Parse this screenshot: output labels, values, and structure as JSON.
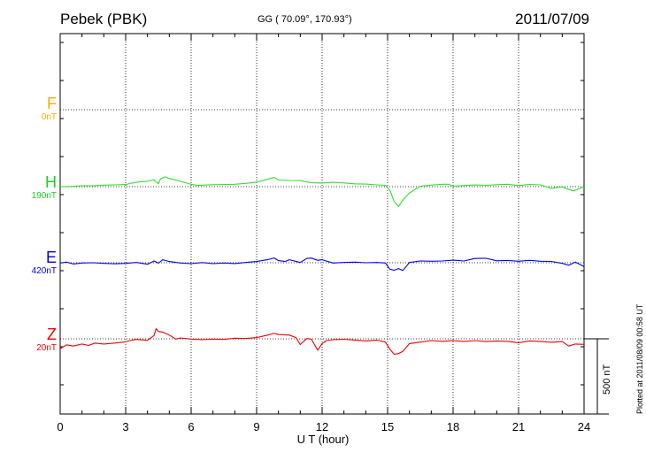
{
  "header": {
    "station": "Pebek (PBK)",
    "coordinates": "GG ( 70.09°, 170.93°)",
    "date": "2011/07/09"
  },
  "footer": {
    "xlabel": "U T (hour)",
    "plotted": "Plotted at 2011/08/09 00:58 UT",
    "scale_label": "500 nT"
  },
  "chart_data": {
    "type": "line",
    "xlabel": "U T (hour)",
    "xlim": [
      0,
      24
    ],
    "xticks": [
      "0",
      "3",
      "6",
      "9",
      "12",
      "15",
      "18",
      "21",
      "24"
    ],
    "scale_bar_nT": 500,
    "grid": true,
    "series": [
      {
        "name": "F",
        "baseline_label": "0nT",
        "color": "#ffaa00",
        "x": [],
        "values": []
      },
      {
        "name": "H",
        "baseline_label": "190nT",
        "color": "#33dd33",
        "x": [
          0,
          0.5,
          1,
          1.5,
          2,
          2.5,
          3,
          3.3,
          3.6,
          4,
          4.3,
          4.5,
          4.6,
          4.8,
          5,
          5.2,
          5.5,
          6,
          6.3,
          7,
          8,
          8.5,
          9,
          9.5,
          9.8,
          10,
          10.5,
          11,
          11.5,
          12,
          12.5,
          13,
          13.5,
          14,
          14.5,
          14.9,
          15.1,
          15.3,
          15.5,
          15.7,
          16,
          16.5,
          17,
          17.5,
          17.8,
          18,
          18.5,
          19,
          19.5,
          20,
          20.5,
          21,
          21.5,
          22,
          22.5,
          23,
          23.5,
          24
        ],
        "values": [
          190,
          192,
          196,
          196,
          200,
          202,
          204,
          214,
          221,
          226,
          236,
          208,
          242,
          255,
          244,
          238,
          226,
          205,
          198,
          203,
          206,
          212,
          220,
          238,
          252,
          234,
          231,
          230,
          216,
          214,
          219,
          215,
          209,
          207,
          202,
          199,
          168,
          92,
          58,
          101,
          148,
          193,
          200,
          206,
          206,
          193,
          197,
          201,
          199,
          203,
          206,
          197,
          204,
          202,
          179,
          188,
          162,
          188
        ]
      },
      {
        "name": "E",
        "baseline_label": "420nT",
        "color": "#0000ee",
        "x": [
          0,
          0.3,
          0.6,
          1,
          1.5,
          2,
          2.5,
          3,
          3.5,
          4,
          4.3,
          4.5,
          4.7,
          5,
          5.5,
          6,
          6.5,
          7,
          7.5,
          8,
          8.5,
          9,
          9.5,
          9.8,
          10,
          10.3,
          10.5,
          11,
          11.3,
          11.5,
          11.8,
          12,
          12.5,
          13,
          13.5,
          14,
          14.5,
          14.9,
          15.1,
          15.3,
          15.5,
          15.7,
          16,
          16.5,
          17,
          17.5,
          18,
          18.5,
          19,
          19.5,
          20,
          20.5,
          21,
          21.5,
          22,
          22.5,
          23,
          23.3,
          23.6,
          24
        ],
        "values": [
          418,
          424,
          412,
          418,
          420,
          416,
          413,
          416,
          422,
          410,
          432,
          417,
          440,
          428,
          418,
          414,
          421,
          414,
          418,
          415,
          422,
          428,
          440,
          452,
          434,
          428,
          440,
          422,
          448,
          451,
          436,
          440,
          418,
          422,
          424,
          420,
          422,
          418,
          377,
          370,
          381,
          368,
          422,
          432,
          430,
          432,
          437,
          432,
          448,
          450,
          433,
          435,
          430,
          436,
          430,
          429,
          416,
          403,
          424,
          394
        ]
      },
      {
        "name": "Z",
        "baseline_label": "20nT",
        "color": "#ee0000",
        "x": [
          0,
          0.3,
          0.6,
          1,
          1.3,
          1.6,
          2,
          2.5,
          3,
          3.3,
          3.5,
          4,
          4.3,
          4.4,
          4.5,
          4.7,
          5,
          5.3,
          5.5,
          6,
          6.5,
          7,
          7.5,
          8,
          8.5,
          9,
          9.5,
          9.8,
          10,
          10.5,
          10.8,
          11,
          11.3,
          11.5,
          11.8,
          12,
          12.2,
          12.5,
          13,
          13.5,
          14,
          14.5,
          14.9,
          15.1,
          15.3,
          15.5,
          15.7,
          16,
          16.5,
          17,
          17.5,
          18,
          18.5,
          19,
          19.5,
          20,
          20.5,
          21,
          21.5,
          22,
          22.5,
          23,
          23.3,
          23.6,
          24
        ],
        "values": [
          -45,
          -20,
          -28,
          -15,
          -24,
          -8,
          -15,
          -8,
          0,
          12,
          16,
          10,
          42,
          88,
          69,
          65,
          45,
          18,
          26,
          18,
          14,
          18,
          16,
          24,
          22,
          28,
          45,
          56,
          48,
          45,
          28,
          -18,
          22,
          18,
          -55,
          -12,
          8,
          14,
          17,
          12,
          6,
          12,
          -2,
          -48,
          -83,
          -78,
          -63,
          -12,
          -2,
          8,
          3,
          8,
          2,
          8,
          2,
          6,
          3,
          -6,
          6,
          3,
          -3,
          2,
          -28,
          -15,
          -17
        ]
      }
    ]
  }
}
